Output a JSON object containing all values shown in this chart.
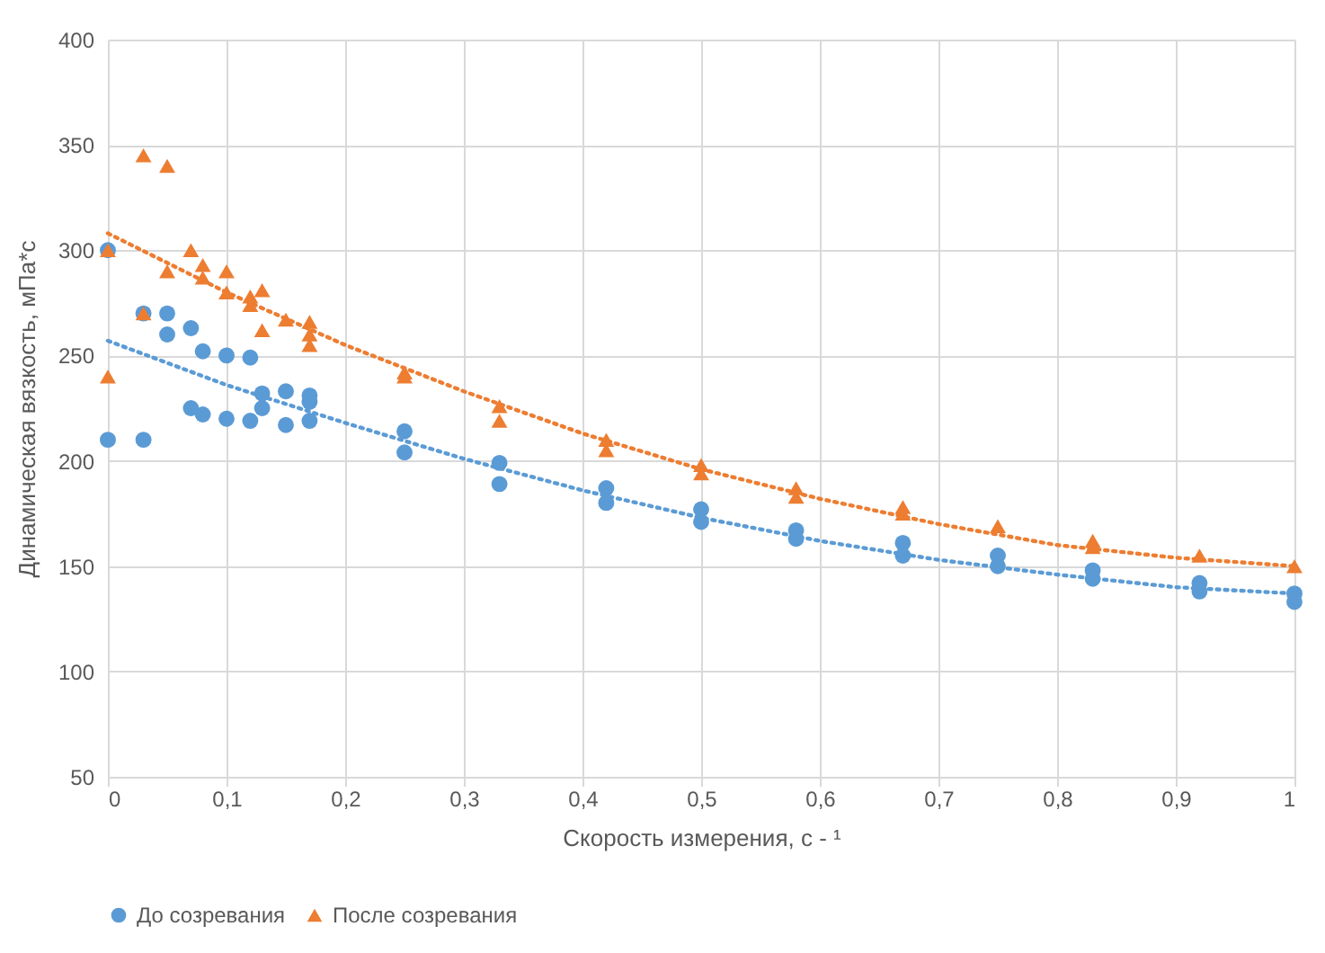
{
  "chart_data": {
    "type": "scatter",
    "xlabel": "Скорость измерения, с - ¹",
    "ylabel": "Динамическая вязкость, мПа*с",
    "xlim": [
      0,
      1
    ],
    "ylim": [
      50,
      400
    ],
    "xticks": [
      0,
      {
        "value": 0.1,
        "label": "0,1"
      },
      {
        "value": 0.2,
        "label": "0,2"
      },
      {
        "value": 0.3,
        "label": "0,3"
      },
      {
        "value": 0.4,
        "label": "0,4"
      },
      {
        "value": 0.5,
        "label": "0,5"
      },
      {
        "value": 0.6,
        "label": "0,6"
      },
      {
        "value": 0.7,
        "label": "0,7"
      },
      {
        "value": 0.8,
        "label": "0,8"
      },
      {
        "value": 0.9,
        "label": "0,9"
      },
      1
    ],
    "yticks": [
      50,
      100,
      150,
      200,
      250,
      300,
      350,
      400
    ],
    "grid": true,
    "legend": "bottom",
    "series": [
      {
        "name": "До созревания",
        "color": "#5b9bd5",
        "marker": "circle",
        "x": [
          0,
          0,
          0.03,
          0.03,
          0.05,
          0.05,
          0.07,
          0.07,
          0.08,
          0.08,
          0.1,
          0.1,
          0.12,
          0.12,
          0.13,
          0.13,
          0.15,
          0.15,
          0.17,
          0.17,
          0.17,
          0.25,
          0.25,
          0.33,
          0.33,
          0.42,
          0.42,
          0.5,
          0.5,
          0.58,
          0.58,
          0.67,
          0.67,
          0.75,
          0.75,
          0.83,
          0.83,
          0.92,
          0.92,
          1,
          1
        ],
        "values": [
          300,
          210,
          270,
          210,
          270,
          260,
          263,
          225,
          252,
          222,
          250,
          220,
          249,
          219,
          232,
          225,
          233,
          217,
          231,
          228,
          219,
          214,
          204,
          199,
          189,
          187,
          180,
          177,
          171,
          167,
          163,
          161,
          155,
          155,
          150,
          148,
          144,
          142,
          138,
          137,
          133
        ]
      },
      {
        "name": "После созревания",
        "color": "#ed7d31",
        "marker": "triangle",
        "x": [
          0,
          0,
          0.03,
          0.03,
          0.05,
          0.05,
          0.07,
          0.08,
          0.08,
          0.1,
          0.1,
          0.12,
          0.12,
          0.13,
          0.13,
          0.15,
          0.17,
          0.17,
          0.17,
          0.25,
          0.25,
          0.33,
          0.33,
          0.42,
          0.42,
          0.5,
          0.5,
          0.58,
          0.58,
          0.67,
          0.67,
          0.75,
          0.83,
          0.83,
          0.92,
          1
        ],
        "values": [
          300,
          240,
          345,
          270,
          340,
          290,
          300,
          293,
          287,
          290,
          280,
          278,
          274,
          281,
          262,
          267,
          266,
          260,
          255,
          242,
          240,
          226,
          219,
          210,
          205,
          198,
          194,
          187,
          183,
          178,
          175,
          169,
          162,
          159,
          155,
          150
        ]
      },
      {
        "type": "line",
        "color": "#5b9bd5",
        "line_style": "dotted",
        "marker": "none",
        "x": [
          0,
          0.1,
          0.2,
          0.3,
          0.4,
          0.5,
          0.6,
          0.7,
          0.8,
          0.9,
          1
        ],
        "values": [
          257,
          236,
          218,
          201,
          186,
          173,
          162,
          153,
          146,
          140,
          137
        ]
      },
      {
        "type": "line",
        "color": "#ed7d31",
        "line_style": "dotted",
        "marker": "none",
        "x": [
          0,
          0.1,
          0.2,
          0.3,
          0.4,
          0.5,
          0.6,
          0.7,
          0.8,
          0.9,
          1
        ],
        "values": [
          308,
          280,
          255,
          233,
          213,
          196,
          182,
          170,
          160,
          154,
          150
        ]
      }
    ]
  }
}
